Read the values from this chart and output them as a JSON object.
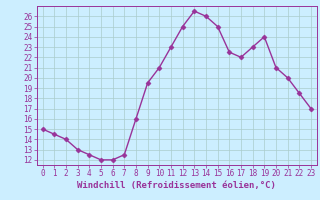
{
  "x": [
    0,
    1,
    2,
    3,
    4,
    5,
    6,
    7,
    8,
    9,
    10,
    11,
    12,
    13,
    14,
    15,
    16,
    17,
    18,
    19,
    20,
    21,
    22,
    23
  ],
  "y": [
    15,
    14.5,
    14,
    13,
    12.5,
    12,
    12,
    12.5,
    16,
    19.5,
    21,
    23,
    25,
    26.5,
    26,
    25,
    22.5,
    22,
    23,
    24,
    21,
    20,
    18.5,
    17
  ],
  "line_color": "#993399",
  "marker": "D",
  "marker_size": 2.5,
  "bg_color": "#cceeff",
  "grid_color": "#aacccc",
  "xlabel": "Windchill (Refroidissement éolien,°C)",
  "xlabel_color": "#993399",
  "tick_color": "#993399",
  "ylim": [
    11.5,
    27
  ],
  "yticks": [
    12,
    13,
    14,
    15,
    16,
    17,
    18,
    19,
    20,
    21,
    22,
    23,
    24,
    25,
    26
  ],
  "xlim": [
    -0.5,
    23.5
  ],
  "xticks": [
    0,
    1,
    2,
    3,
    4,
    5,
    6,
    7,
    8,
    9,
    10,
    11,
    12,
    13,
    14,
    15,
    16,
    17,
    18,
    19,
    20,
    21,
    22,
    23
  ],
  "line_width": 1.0,
  "tick_fontsize": 5.5,
  "xlabel_fontsize": 6.5
}
